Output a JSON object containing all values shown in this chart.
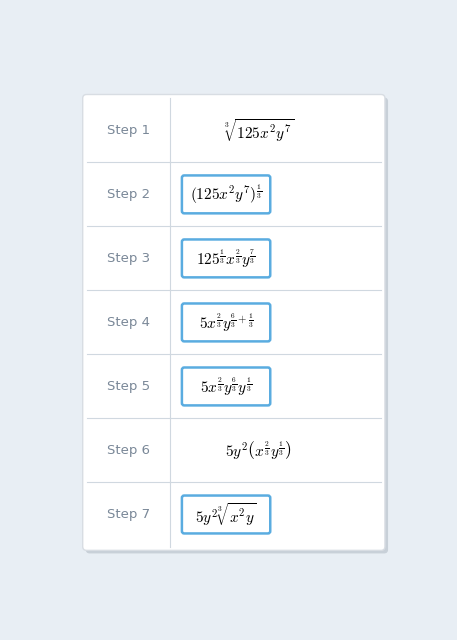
{
  "background_color": "#e8eef4",
  "card_color": "#ffffff",
  "border_color": "#5aace0",
  "divider_color": "#d0d8e0",
  "step_label_color": "#7a8898",
  "fig_width": 4.57,
  "fig_height": 6.4,
  "dpi": 100,
  "steps": [
    {
      "label": "Step 1",
      "boxed": false,
      "formula": "$\\mathit{\\sqrt[3]{125x^2 y^7}}$"
    },
    {
      "label": "Step 2",
      "boxed": true,
      "formula": "$(125x^2y^7)^{\\frac{1}{3}}$"
    },
    {
      "label": "Step 3",
      "boxed": true,
      "formula": "$125^{\\frac{1}{3}} x^{\\frac{2}{3}} y^{\\frac{7}{3}}$"
    },
    {
      "label": "Step 4",
      "boxed": true,
      "formula": "$5x^{\\frac{2}{3}} y^{\\frac{6}{3}+\\frac{1}{3}}$"
    },
    {
      "label": "Step 5",
      "boxed": true,
      "formula": "$5x^{\\frac{2}{3}} y^{\\frac{6}{3}} y^{\\frac{1}{3}}$"
    },
    {
      "label": "Step 6",
      "boxed": false,
      "formula": "$5y^2\\left(x^{\\frac{2}{3}}y^{\\frac{1}{3}}\\right)$"
    },
    {
      "label": "Step 7",
      "boxed": true,
      "formula": "$5y^2 \\sqrt[3]{x^2y}$"
    }
  ]
}
